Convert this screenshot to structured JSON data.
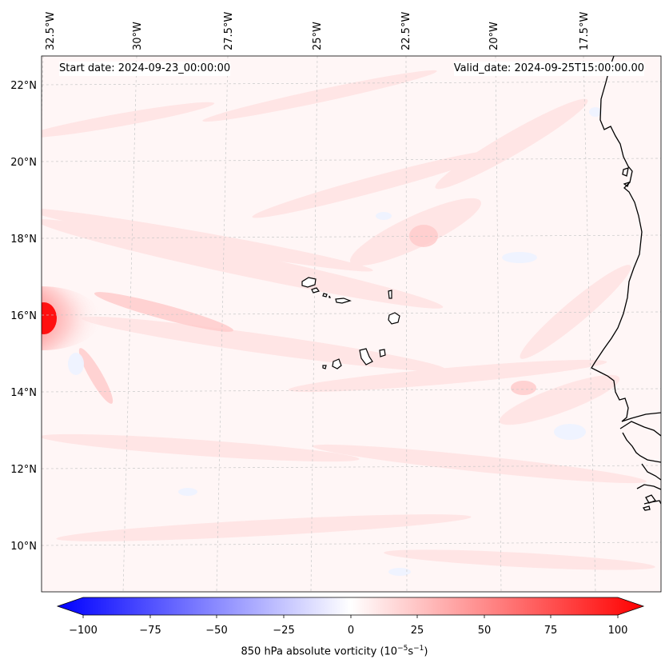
{
  "header": {
    "start_date": "Start date: 2024-09-23_00:00:00",
    "valid_date": "Valid_date: 2024-09-25T15:00:00.00"
  },
  "axes": {
    "lon_ticks": [
      "32.5°W",
      "30°W",
      "27.5°W",
      "25°W",
      "22.5°W",
      "20°W",
      "17.5°W"
    ],
    "lat_ticks": [
      "22°N",
      "20°N",
      "18°N",
      "16°N",
      "14°N",
      "12°N",
      "10°N"
    ]
  },
  "colorbar": {
    "ticks": [
      "−100",
      "−75",
      "−50",
      "−25",
      "0",
      "25",
      "50",
      "75",
      "100"
    ],
    "label_main": "850 hPa absolute vorticity (10",
    "label_exp1": "−5",
    "label_mid": "s",
    "label_exp2": "−1",
    "label_end": ")",
    "colormap": "bwr",
    "min": -100,
    "max": 100
  },
  "colors": {
    "background_field": "#fff6f6",
    "vortex": "#ff0000",
    "coastline": "#000000",
    "gridline": "#cccccc"
  }
}
